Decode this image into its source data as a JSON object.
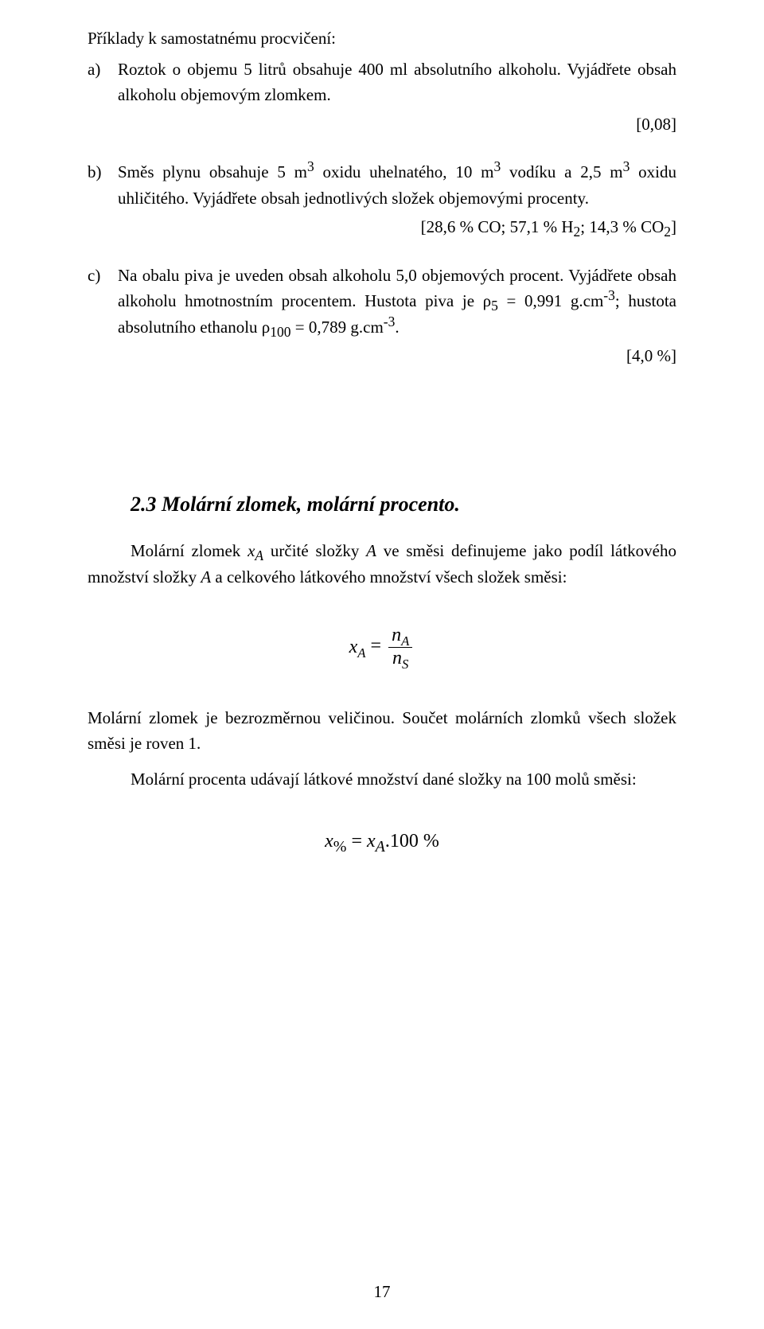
{
  "intro": "Příklady k samostatnému procvičení:",
  "items": {
    "a": {
      "marker": "a)",
      "text": "Roztok o objemu 5 litrů obsahuje 400 ml absolutního alkoholu. Vyjádřete obsah alkoholu objemovým zlomkem.",
      "answer": "[0,08]"
    },
    "b": {
      "marker": "b)",
      "text_html": "Směs plynu obsahuje 5 m<sup>3</sup> oxidu uhelnatého, 10 m<sup>3</sup> vodíku a 2,5 m<sup>3</sup> oxidu uhličitého. Vyjádřete obsah jednotlivých složek objemovými procenty.",
      "answer_html": "[28,6 % CO; 57,1 % H<sub>2</sub>; 14,3 % CO<sub>2</sub>]"
    },
    "c": {
      "marker": "c)",
      "text_html": "Na obalu piva je uveden obsah alkoholu 5,0 objemových procent. Vyjádřete obsah alkoholu hmotnostním procentem. Hustota piva je ρ<sub>5</sub> = 0,991 g.cm<sup>-3</sup>; hustota absolutního ethanolu ρ<sub>100</sub> = 0,789 g.cm<sup>-3</sup>.",
      "answer": "[4,0 %]"
    }
  },
  "section": {
    "heading": "2.3 Molární zlomek, molární procento.",
    "para1_html": "Molární zlomek <span class=\"ital\">x<sub>A</sub></span> určité složky <span class=\"ital\">A</span> ve směsi definujeme jako podíl látkového množství složky <span class=\"ital\">A</span> a celkového látkového množství všech složek směsi:",
    "formula1": {
      "left_html": "x<span class=\"sub\">A</span>",
      "eq": " = ",
      "num_html": "<span class=\"ital\">n</span><span class=\"fsub ital\">A</span>",
      "den_html": "<span class=\"ital\">n</span><span class=\"fsub ital\">S</span>"
    },
    "para2": "Molární zlomek je bezrozměrnou veličinou. Součet molárních zlomků všech složek směsi je roven 1.",
    "para3": "Molární procenta udávají látkové množství dané složky na 100 molů směsi:",
    "formula2_html": "<span class=\"ital\">x</span><sub>%</sub> = <span class=\"ital\">x</span><sub class=\"ital\">A</sub>.100 %"
  },
  "pagenum": "17"
}
